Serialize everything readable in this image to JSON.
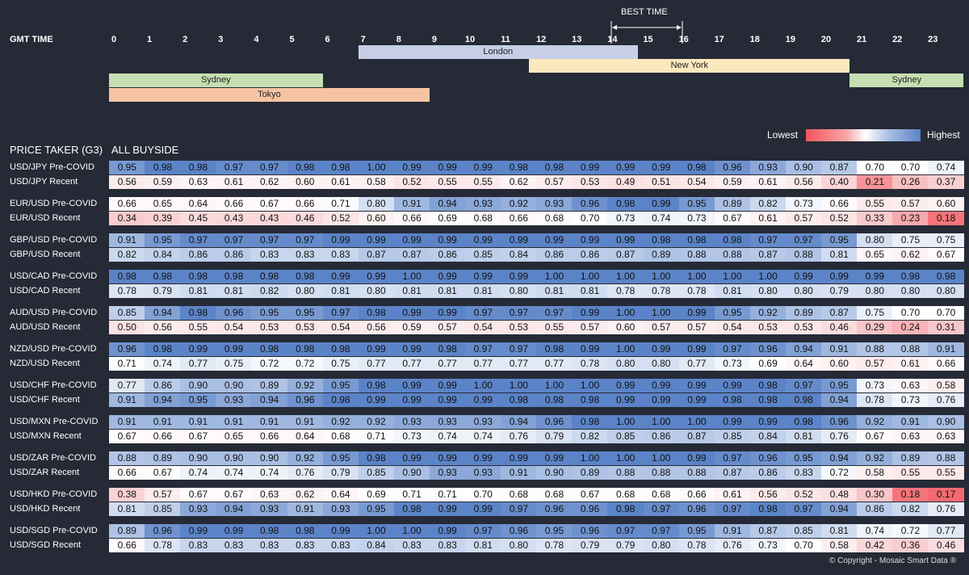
{
  "header": {
    "gmt_label": "GMT TIME",
    "hours": [
      "0",
      "1",
      "2",
      "3",
      "4",
      "5",
      "6",
      "7",
      "8",
      "9",
      "10",
      "11",
      "12",
      "13",
      "14",
      "15",
      "16",
      "17",
      "18",
      "19",
      "20",
      "21",
      "22",
      "23"
    ],
    "best_time_label": "BEST TIME",
    "best_time_range": [
      14,
      16
    ]
  },
  "sessions": [
    {
      "name": "London",
      "start": 7,
      "end": 14.85,
      "row": 0,
      "color": "#c6cfe6"
    },
    {
      "name": "New York",
      "start": 11.8,
      "end": 20.8,
      "row": 1,
      "color": "#fbe8bd"
    },
    {
      "name": "Sydney",
      "start": 0,
      "end": 6,
      "row": 2,
      "color": "#c6dfb1"
    },
    {
      "name": "Sydney",
      "start": 20.8,
      "end": 24,
      "row": 2,
      "color": "#c6dfb1"
    },
    {
      "name": "Tokyo",
      "start": 0,
      "end": 9,
      "row": 3,
      "color": "#f7c4a3"
    }
  ],
  "legend": {
    "lowest": "Lowest",
    "highest": "Highest"
  },
  "section": {
    "left": "PRICE TAKER (G3)",
    "right": "ALL BUYSIDE"
  },
  "copyright": "© Copyright - Mosaic Smart Data ®",
  "chart_data": {
    "type": "heatmap",
    "x": [
      "0",
      "1",
      "2",
      "3",
      "4",
      "5",
      "6",
      "7",
      "8",
      "9",
      "10",
      "11",
      "12",
      "13",
      "14",
      "15",
      "16",
      "17",
      "18",
      "19",
      "20",
      "21",
      "22",
      "23"
    ],
    "xlabel": "GMT TIME",
    "rows": [
      {
        "label": "USD/JPY Pre-COVID",
        "values": [
          0.95,
          0.98,
          0.98,
          0.97,
          0.97,
          0.98,
          0.98,
          1.0,
          0.99,
          0.99,
          0.99,
          0.98,
          0.98,
          0.99,
          0.99,
          0.99,
          0.98,
          0.96,
          0.93,
          0.9,
          0.87,
          0.7,
          0.7,
          0.74
        ]
      },
      {
        "label": "USD/JPY Recent",
        "values": [
          0.56,
          0.59,
          0.63,
          0.61,
          0.62,
          0.6,
          0.61,
          0.58,
          0.52,
          0.55,
          0.55,
          0.62,
          0.57,
          0.53,
          0.49,
          0.51,
          0.54,
          0.59,
          0.61,
          0.56,
          0.4,
          0.21,
          0.26,
          0.37
        ]
      },
      {
        "label": "EUR/USD Pre-COVID",
        "values": [
          0.66,
          0.65,
          0.64,
          0.66,
          0.67,
          0.66,
          0.71,
          0.8,
          0.91,
          0.94,
          0.93,
          0.92,
          0.93,
          0.96,
          0.98,
          0.99,
          0.95,
          0.89,
          0.82,
          0.73,
          0.66,
          0.55,
          0.57,
          0.6
        ]
      },
      {
        "label": "EUR/USD Recent",
        "values": [
          0.34,
          0.39,
          0.45,
          0.43,
          0.43,
          0.46,
          0.52,
          0.6,
          0.66,
          0.69,
          0.68,
          0.66,
          0.68,
          0.7,
          0.73,
          0.74,
          0.73,
          0.67,
          0.61,
          0.57,
          0.52,
          0.33,
          0.23,
          0.18
        ]
      },
      {
        "label": "GBP/USD Pre-COVID",
        "values": [
          0.91,
          0.95,
          0.97,
          0.97,
          0.97,
          0.97,
          0.99,
          0.99,
          0.99,
          0.99,
          0.99,
          0.99,
          0.99,
          0.99,
          0.99,
          0.98,
          0.98,
          0.98,
          0.97,
          0.97,
          0.95,
          0.8,
          0.75,
          0.75
        ]
      },
      {
        "label": "GBP/USD Recent",
        "values": [
          0.82,
          0.84,
          0.86,
          0.86,
          0.83,
          0.83,
          0.83,
          0.87,
          0.87,
          0.86,
          0.85,
          0.84,
          0.86,
          0.86,
          0.87,
          0.89,
          0.88,
          0.88,
          0.87,
          0.88,
          0.81,
          0.65,
          0.62,
          0.67
        ]
      },
      {
        "label": "USD/CAD Pre-COVID",
        "values": [
          0.98,
          0.98,
          0.98,
          0.98,
          0.98,
          0.98,
          0.99,
          0.99,
          1.0,
          0.99,
          0.99,
          0.99,
          1.0,
          1.0,
          1.0,
          1.0,
          1.0,
          1.0,
          1.0,
          0.99,
          0.99,
          0.99,
          0.98,
          0.98
        ]
      },
      {
        "label": "USD/CAD Recent",
        "values": [
          0.78,
          0.79,
          0.81,
          0.81,
          0.82,
          0.8,
          0.81,
          0.8,
          0.81,
          0.81,
          0.81,
          0.8,
          0.81,
          0.81,
          0.78,
          0.78,
          0.78,
          0.81,
          0.8,
          0.8,
          0.79,
          0.8,
          0.8,
          0.8
        ]
      },
      {
        "label": "AUD/USD Pre-COVID",
        "values": [
          0.85,
          0.94,
          0.98,
          0.96,
          0.95,
          0.95,
          0.97,
          0.98,
          0.99,
          0.99,
          0.97,
          0.97,
          0.97,
          0.99,
          1.0,
          1.0,
          0.99,
          0.95,
          0.92,
          0.89,
          0.87,
          0.75,
          0.7,
          0.7
        ]
      },
      {
        "label": "AUD/USD Recent",
        "values": [
          0.5,
          0.56,
          0.55,
          0.54,
          0.53,
          0.53,
          0.54,
          0.56,
          0.59,
          0.57,
          0.54,
          0.53,
          0.55,
          0.57,
          0.6,
          0.57,
          0.57,
          0.54,
          0.53,
          0.53,
          0.46,
          0.29,
          0.24,
          0.31
        ]
      },
      {
        "label": "NZD/USD Pre-COVID",
        "values": [
          0.96,
          0.98,
          0.99,
          0.99,
          0.98,
          0.98,
          0.98,
          0.99,
          0.99,
          0.98,
          0.97,
          0.97,
          0.98,
          0.99,
          1.0,
          0.99,
          0.99,
          0.97,
          0.96,
          0.94,
          0.91,
          0.88,
          0.88,
          0.91
        ]
      },
      {
        "label": "NZD/USD Recent",
        "values": [
          0.71,
          0.74,
          0.77,
          0.75,
          0.72,
          0.72,
          0.75,
          0.77,
          0.77,
          0.77,
          0.77,
          0.77,
          0.77,
          0.78,
          0.8,
          0.8,
          0.77,
          0.73,
          0.69,
          0.64,
          0.6,
          0.57,
          0.61,
          0.66
        ]
      },
      {
        "label": "USD/CHF Pre-COVID",
        "values": [
          0.77,
          0.86,
          0.9,
          0.9,
          0.89,
          0.92,
          0.95,
          0.98,
          0.99,
          0.99,
          1.0,
          1.0,
          1.0,
          1.0,
          0.99,
          0.99,
          0.99,
          0.99,
          0.98,
          0.97,
          0.95,
          0.73,
          0.63,
          0.58
        ]
      },
      {
        "label": "USD/CHF Recent",
        "values": [
          0.91,
          0.94,
          0.95,
          0.93,
          0.94,
          0.96,
          0.98,
          0.99,
          0.99,
          0.99,
          0.99,
          0.98,
          0.98,
          0.98,
          0.99,
          0.99,
          0.99,
          0.98,
          0.98,
          0.98,
          0.94,
          0.78,
          0.73,
          0.76
        ]
      },
      {
        "label": "USD/MXN Pre-COVID",
        "values": [
          0.91,
          0.91,
          0.91,
          0.91,
          0.91,
          0.91,
          0.92,
          0.92,
          0.93,
          0.93,
          0.93,
          0.94,
          0.96,
          0.98,
          1.0,
          1.0,
          1.0,
          0.99,
          0.99,
          0.98,
          0.96,
          0.92,
          0.91,
          0.9
        ]
      },
      {
        "label": "USD/MXN Recent",
        "values": [
          0.67,
          0.66,
          0.67,
          0.65,
          0.66,
          0.64,
          0.68,
          0.71,
          0.73,
          0.74,
          0.74,
          0.76,
          0.79,
          0.82,
          0.85,
          0.86,
          0.87,
          0.85,
          0.84,
          0.81,
          0.76,
          0.67,
          0.63,
          0.63
        ]
      },
      {
        "label": "USD/ZAR Pre-COVID",
        "values": [
          0.88,
          0.89,
          0.9,
          0.9,
          0.9,
          0.92,
          0.95,
          0.98,
          0.99,
          0.99,
          0.99,
          0.99,
          0.99,
          1.0,
          1.0,
          1.0,
          0.99,
          0.97,
          0.96,
          0.95,
          0.94,
          0.92,
          0.89,
          0.88
        ]
      },
      {
        "label": "USD/ZAR Recent",
        "values": [
          0.66,
          0.67,
          0.74,
          0.74,
          0.74,
          0.76,
          0.79,
          0.85,
          0.9,
          0.93,
          0.93,
          0.91,
          0.9,
          0.89,
          0.88,
          0.88,
          0.88,
          0.87,
          0.86,
          0.83,
          0.72,
          0.58,
          0.55,
          0.55
        ]
      },
      {
        "label": "USD/HKD Pre-COVID",
        "values": [
          0.38,
          0.57,
          0.67,
          0.67,
          0.63,
          0.62,
          0.64,
          0.69,
          0.71,
          0.71,
          0.7,
          0.68,
          0.68,
          0.67,
          0.68,
          0.68,
          0.66,
          0.61,
          0.56,
          0.52,
          0.48,
          0.3,
          0.18,
          0.17
        ]
      },
      {
        "label": "USD/HKD Recent",
        "values": [
          0.81,
          0.85,
          0.93,
          0.94,
          0.93,
          0.91,
          0.93,
          0.95,
          0.98,
          0.99,
          0.99,
          0.97,
          0.96,
          0.96,
          0.98,
          0.97,
          0.96,
          0.97,
          0.98,
          0.97,
          0.94,
          0.86,
          0.82,
          0.76
        ]
      },
      {
        "label": "USD/SGD Pre-COVID",
        "values": [
          0.89,
          0.96,
          0.99,
          0.99,
          0.98,
          0.98,
          0.99,
          1.0,
          1.0,
          0.99,
          0.97,
          0.96,
          0.95,
          0.96,
          0.97,
          0.97,
          0.95,
          0.91,
          0.87,
          0.85,
          0.81,
          0.74,
          0.72,
          0.77
        ]
      },
      {
        "label": "USD/SGD Recent",
        "values": [
          0.66,
          0.78,
          0.83,
          0.83,
          0.83,
          0.83,
          0.83,
          0.84,
          0.83,
          0.83,
          0.81,
          0.8,
          0.78,
          0.79,
          0.79,
          0.8,
          0.78,
          0.76,
          0.73,
          0.7,
          0.58,
          0.42,
          0.36,
          0.46
        ]
      }
    ]
  }
}
